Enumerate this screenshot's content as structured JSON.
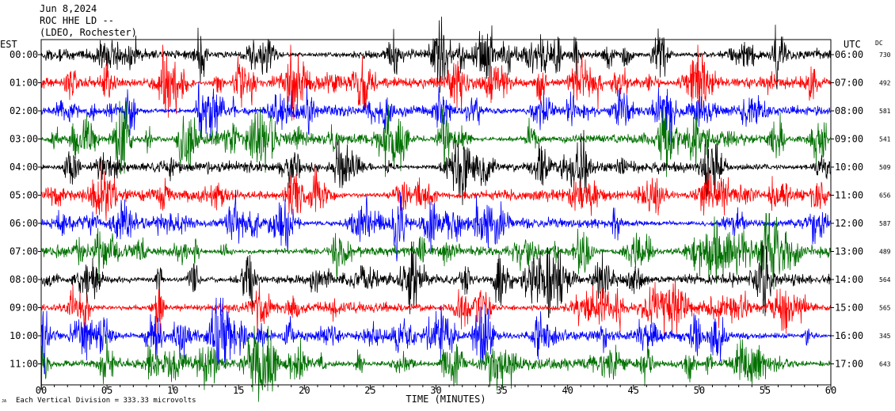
{
  "header": {
    "date": "Jun 8,2024",
    "station": "ROC HHE LD --",
    "network": "(LDEO, Rochester)"
  },
  "labels": {
    "left_tz": "EST",
    "right_tz": "UTC",
    "dc": "DC",
    "xlabel": "TIME (MINUTES)",
    "footer": "Each Vertical Division =  333.33 microvolts",
    "footer_mark": "JA"
  },
  "chart_data": {
    "type": "line",
    "title": "Jun 8,2024 ROC HHE LD -- (LDEO, Rochester)",
    "xlabel": "TIME (MINUTES)",
    "xlim": [
      0,
      60
    ],
    "xticks": [
      "00",
      "05",
      "10",
      "15",
      "20",
      "25",
      "30",
      "35",
      "40",
      "45",
      "50",
      "55",
      "60"
    ],
    "left_tz": "EST",
    "right_tz": "UTC",
    "colors": [
      "#000000",
      "#ff0000",
      "#0000ff",
      "#007000"
    ],
    "rows": [
      {
        "est": "00:00",
        "utc": "06:00",
        "dc": "730"
      },
      {
        "est": "01:00",
        "utc": "07:00",
        "dc": "492"
      },
      {
        "est": "02:00",
        "utc": "08:00",
        "dc": "581"
      },
      {
        "est": "03:00",
        "utc": "09:00",
        "dc": "541"
      },
      {
        "est": "04:00",
        "utc": "10:00",
        "dc": "509"
      },
      {
        "est": "05:00",
        "utc": "11:00",
        "dc": "656"
      },
      {
        "est": "06:00",
        "utc": "12:00",
        "dc": "587"
      },
      {
        "est": "07:00",
        "utc": "13:00",
        "dc": "489"
      },
      {
        "est": "08:00",
        "utc": "14:00",
        "dc": "564"
      },
      {
        "est": "09:00",
        "utc": "15:00",
        "dc": "565"
      },
      {
        "est": "10:00",
        "utc": "16:00",
        "dc": "345"
      },
      {
        "est": "11:00",
        "utc": "17:00",
        "dc": "643"
      }
    ],
    "vertical_division_microvolts": 333.33,
    "grid": false
  }
}
